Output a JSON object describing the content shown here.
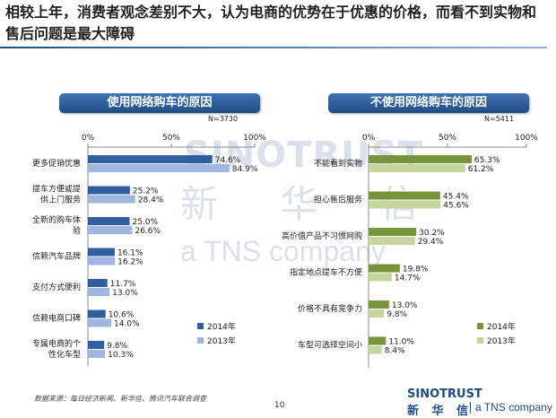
{
  "title": "相较上年，消费者观念差别不大，认为电商的优势在于优惠的价格，而看不到实物和售后问题是最大障碍",
  "watermark": {
    "brand": "SINOTRUST",
    "chinese": "新 华 信",
    "tagline": "a TNS company"
  },
  "footer": {
    "source": "数据来源：每日经济新闻、新华信、腾讯汽车联合调查",
    "page": "10"
  },
  "logo": {
    "brand": "SINOTRUST",
    "chinese": "新 华 信",
    "tagline": "a TNS company"
  },
  "colors": {
    "series_2014_left": "#2f5f9e",
    "series_2013_left": "#9fb6e0",
    "series_2014_right": "#77933c",
    "series_2013_right": "#c3d69b"
  },
  "chart_data": [
    {
      "type": "bar",
      "orientation": "horizontal",
      "title": "使用网络购车的原因",
      "sample": "N=3730",
      "xlim": [
        0,
        100
      ],
      "ticks": [
        "0%",
        "50%",
        "100%"
      ],
      "categories": [
        "更多促销优惠",
        "提车方便或提供上门服务",
        "全新的购车体验",
        "信赖汽车品牌",
        "支付方式便利",
        "信赖电商口碑",
        "专属电商的个性化车型"
      ],
      "series": [
        {
          "name": "2014年",
          "values": [
            74.6,
            25.2,
            25.0,
            16.1,
            11.7,
            10.6,
            9.8
          ],
          "labels": [
            "74.6%",
            "25.2%",
            "25.0%",
            "16.1%",
            "11.7%",
            "10.6%",
            "9.8%"
          ]
        },
        {
          "name": "2013年",
          "values": [
            84.9,
            28.4,
            26.6,
            16.2,
            13.0,
            14.0,
            10.3
          ],
          "labels": [
            "84.9%",
            "28.4%",
            "26.6%",
            "16.2%",
            "13.0%",
            "14.0%",
            "10.3%"
          ]
        }
      ],
      "legend_position": "bottom-right"
    },
    {
      "type": "bar",
      "orientation": "horizontal",
      "title": "不使用网络购车的原因",
      "sample": "N=5411",
      "xlim": [
        0,
        100
      ],
      "ticks": [
        "0%",
        "50%",
        "100%"
      ],
      "categories": [
        "不能看到实物",
        "担心售后服务",
        "高价值产品不习惯网购",
        "指定地点提车不方便",
        "价格不具有竞争力",
        "车型可选择空间小"
      ],
      "series": [
        {
          "name": "2014年",
          "values": [
            65.3,
            45.4,
            30.2,
            19.8,
            13.0,
            11.0
          ],
          "labels": [
            "65.3%",
            "45.4%",
            "30.2%",
            "19.8%",
            "13.0%",
            "11.0%"
          ]
        },
        {
          "name": "2013年",
          "values": [
            61.2,
            45.6,
            29.4,
            14.7,
            9.8,
            8.4
          ],
          "labels": [
            "61.2%",
            "45.6%",
            "29.4%",
            "14.7%",
            "9.8%",
            "8.4%"
          ]
        }
      ],
      "legend_position": "bottom-right"
    }
  ]
}
